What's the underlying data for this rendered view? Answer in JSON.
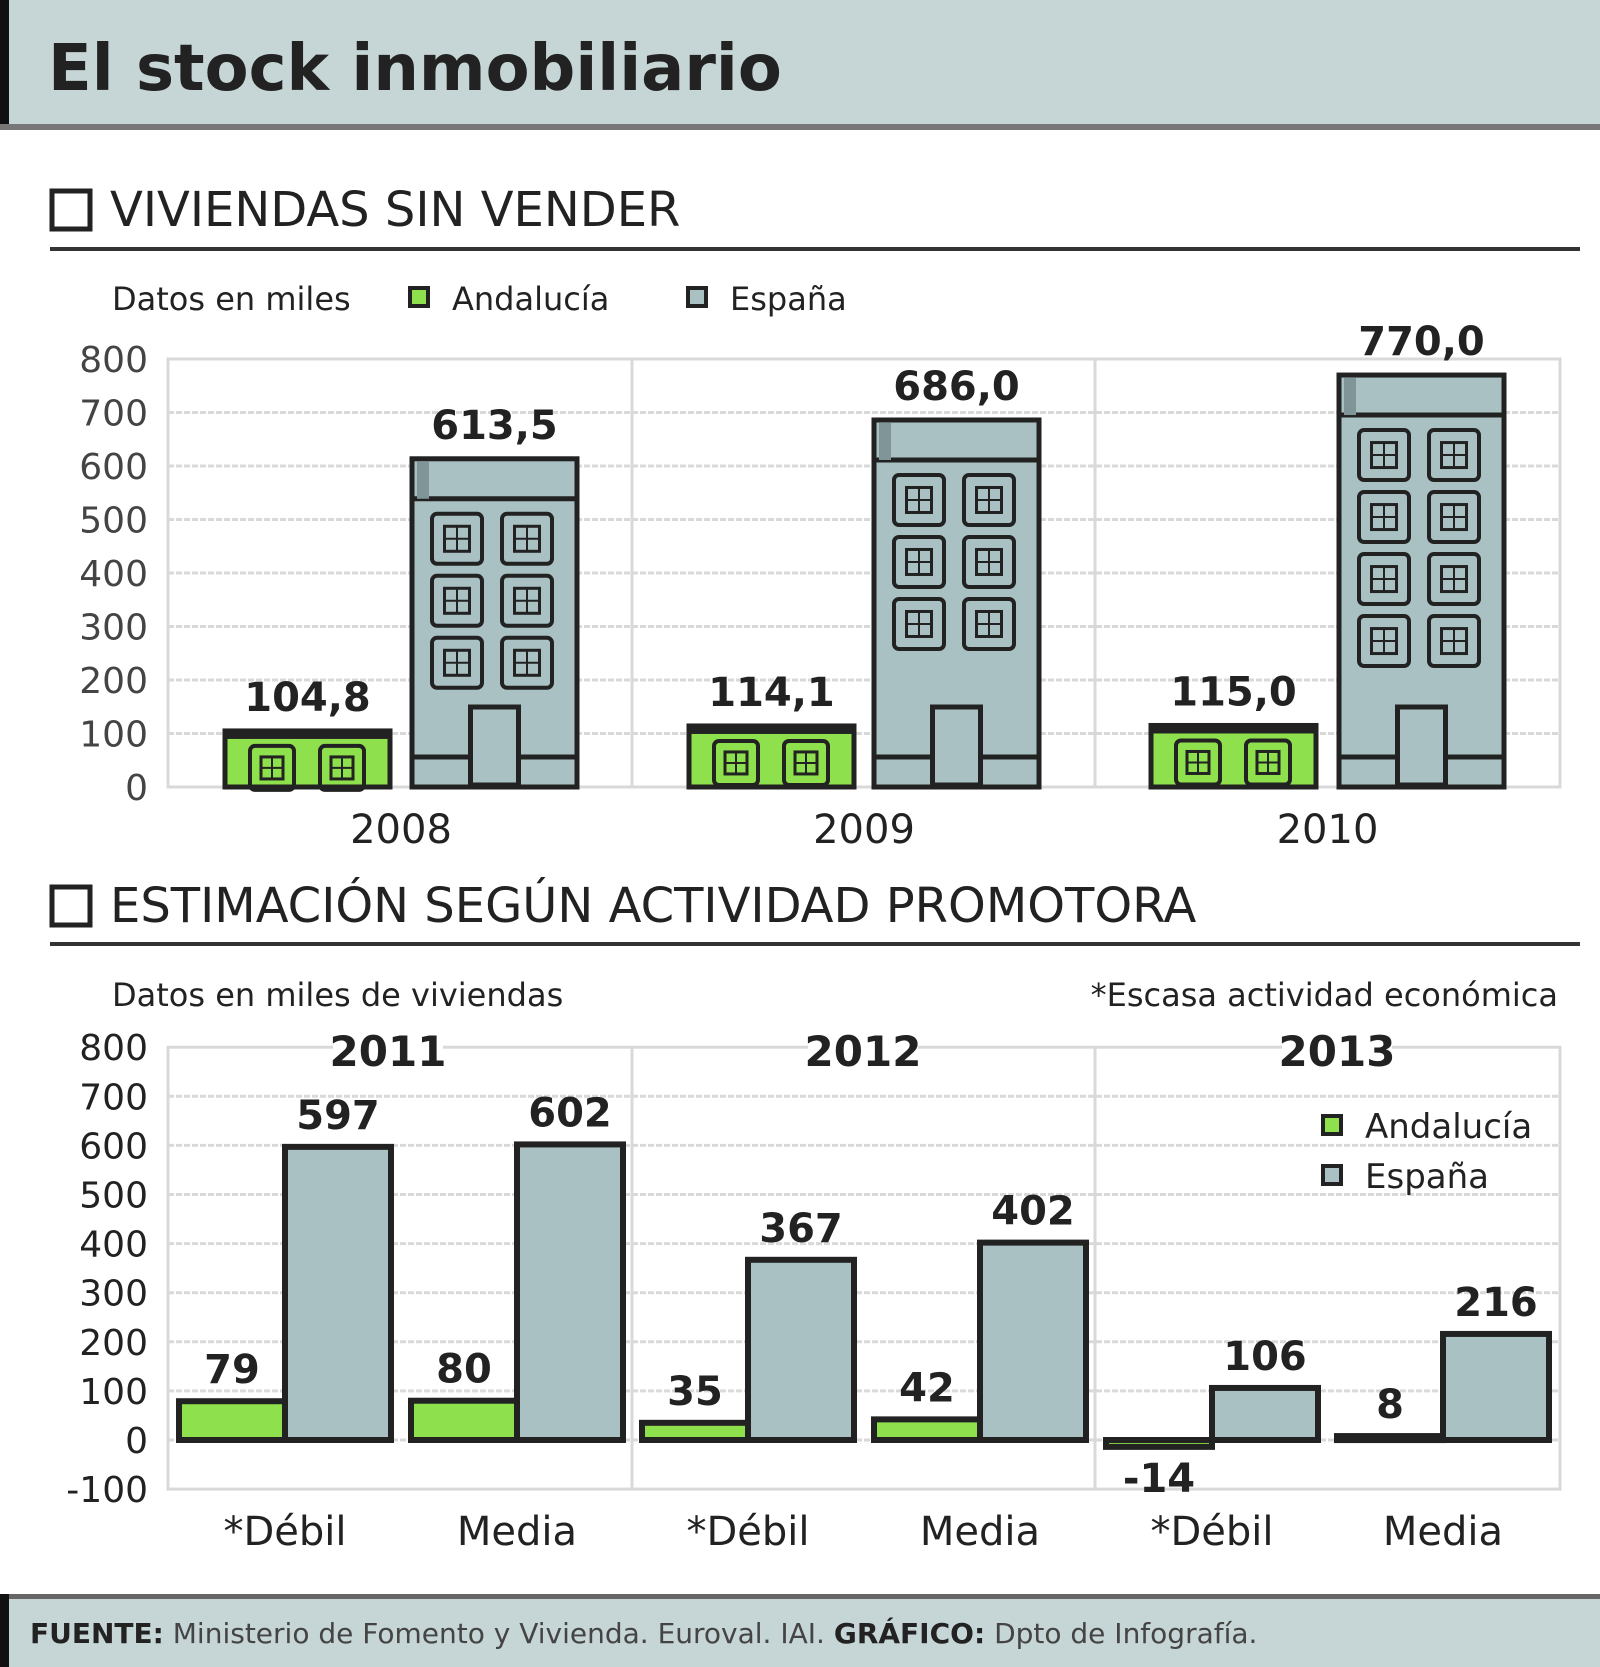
{
  "title": "El stock inmobiliario",
  "colors": {
    "header_bg": "#c6d5d5",
    "andalucia": "#8ee04c",
    "espana": "#a9c1c3",
    "outline": "#222222",
    "grid": "#d9d9d9"
  },
  "footer": {
    "source_label": "FUENTE:",
    "source_text": "Ministerio de Fomento y Vivienda. Euroval. IAI.",
    "credit_label": "GRÁFICO:",
    "credit_text": "Dpto de Infografía."
  },
  "chart_data": [
    {
      "type": "bar",
      "title": "VIVIENDAS SIN VENDER",
      "subtitle": "Datos en miles",
      "legend": [
        "Andalucía",
        "España"
      ],
      "legend_placement": "top",
      "categories": [
        "2008",
        "2009",
        "2010"
      ],
      "series": [
        {
          "name": "Andalucía",
          "values": [
            104.8,
            114.1,
            115.0
          ],
          "labels": [
            "104,8",
            "114,1",
            "115,0"
          ]
        },
        {
          "name": "España",
          "values": [
            613.5,
            686.0,
            770.0
          ],
          "labels": [
            "613,5",
            "686,0",
            "770,0"
          ]
        }
      ],
      "ylim": [
        0,
        800
      ],
      "yticks": [
        "0",
        "100",
        "200",
        "300",
        "400",
        "500",
        "600",
        "700",
        "800"
      ],
      "grid": true
    },
    {
      "type": "bar",
      "title": "ESTIMACIÓN SEGÚN ACTIVIDAD PROMOTORA",
      "subtitle": "Datos en miles de viviendas",
      "note": "*Escasa actividad económica",
      "legend": [
        "Andalucía",
        "España"
      ],
      "legend_placement": "top-right",
      "groups": [
        "2011",
        "2012",
        "2013"
      ],
      "categories": [
        "*Débil",
        "Media",
        "*Débil",
        "Media",
        "*Débil",
        "Media"
      ],
      "series": [
        {
          "name": "Andalucía",
          "values": [
            79,
            80,
            35,
            42,
            -14,
            8
          ],
          "labels": [
            "79",
            "80",
            "35",
            "42",
            "-14",
            "8"
          ]
        },
        {
          "name": "España",
          "values": [
            597,
            602,
            367,
            402,
            106,
            216
          ],
          "labels": [
            "597",
            "602",
            "367",
            "402",
            "106",
            "216"
          ]
        }
      ],
      "ylim": [
        -100,
        800
      ],
      "yticks": [
        "-100",
        "0",
        "100",
        "200",
        "300",
        "400",
        "500",
        "600",
        "700",
        "800"
      ],
      "grid": true
    }
  ]
}
